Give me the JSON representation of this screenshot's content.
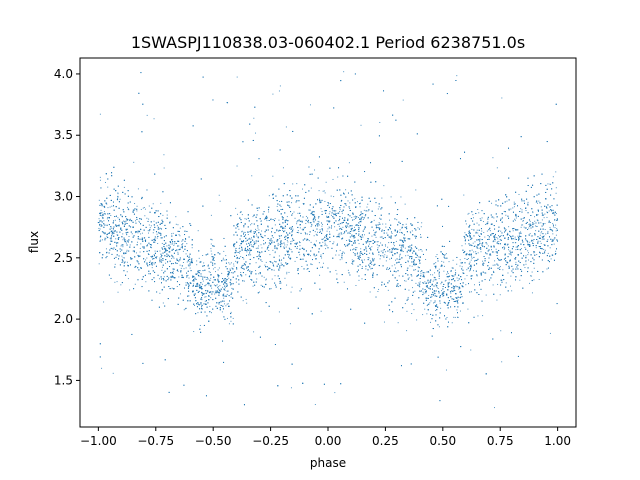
{
  "chart_data": {
    "type": "scatter",
    "title": "1SWASPJ110838.03-060402.1 Period 6238751.0s",
    "xlabel": "phase",
    "ylabel": "flux",
    "xlim": [
      -1.08,
      1.08
    ],
    "ylim": [
      1.12,
      4.13
    ],
    "x_ticks": [
      -1.0,
      -0.75,
      -0.5,
      -0.25,
      0.0,
      0.25,
      0.5,
      0.75,
      1.0
    ],
    "x_tick_labels": [
      "−1.00",
      "−0.75",
      "−0.50",
      "−0.25",
      "0.00",
      "0.25",
      "0.50",
      "0.75",
      "1.00"
    ],
    "y_ticks": [
      1.5,
      2.0,
      2.5,
      3.0,
      3.5,
      4.0
    ],
    "y_tick_labels": [
      "1.5",
      "2.0",
      "2.5",
      "3.0",
      "3.5",
      "4.0"
    ],
    "grid": false,
    "legend": "none",
    "marker_color": "#1f77b4",
    "phase_range": [
      -1.0,
      1.0
    ],
    "profile": {
      "phase": [
        0.0,
        0.1,
        0.2,
        0.3,
        0.4,
        0.5,
        0.6,
        0.7,
        0.8,
        0.9,
        1.0
      ],
      "flux": [
        2.78,
        2.72,
        2.62,
        2.55,
        2.45,
        2.35,
        2.55,
        2.58,
        2.63,
        2.68,
        2.78
      ]
    },
    "dips": [
      {
        "phase": -0.55,
        "flux": 2.3
      },
      {
        "phase": -0.45,
        "flux": 2.3
      },
      {
        "phase": 0.45,
        "flux": 2.3
      },
      {
        "phase": 0.55,
        "flux": 2.3
      }
    ],
    "flux_scatter": 0.18,
    "flux_range": [
      1.27,
      4.02
    ],
    "n_points": 9000
  }
}
